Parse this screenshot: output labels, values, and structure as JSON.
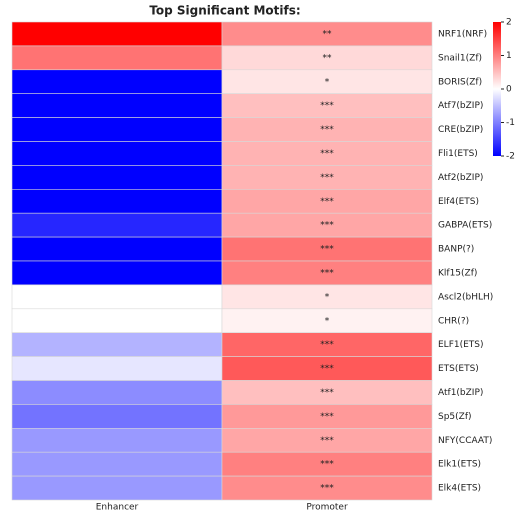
{
  "chart_data": {
    "type": "heatmap",
    "title": "Top Significant Motifs:",
    "rows": [
      "NRF1(NRF)",
      "Snail1(Zf)",
      "BORIS(Zf)",
      "Atf7(bZIP)",
      "CRE(bZIP)",
      "Fli1(ETS)",
      "Atf2(bZIP)",
      "Elf4(ETS)",
      "GABPA(ETS)",
      "BANP(?)",
      "Klf15(Zf)",
      "Ascl2(bHLH)",
      "CHR(?)",
      "ELF1(ETS)",
      "ETS(ETS)",
      "Atf1(bZIP)",
      "Sp5(Zf)",
      "NFY(CCAAT)",
      "Elk1(ETS)",
      "Elk4(ETS)"
    ],
    "series": [
      {
        "name": "Enhancer",
        "values": [
          2,
          1.1,
          -2,
          -2,
          -2,
          -2,
          -2,
          -2,
          -1.7,
          -2,
          -2,
          0,
          0,
          -0.6,
          -0.2,
          -0.9,
          -1.1,
          -0.8,
          -0.8,
          -0.8
        ]
      },
      {
        "name": "Promoter",
        "values": [
          0.9,
          0.3,
          0.2,
          0.5,
          0.6,
          0.6,
          0.6,
          0.7,
          0.7,
          1.1,
          1.0,
          0.2,
          0.1,
          1.2,
          1.3,
          0.5,
          0.8,
          0.7,
          1.0,
          0.9
        ],
        "significance": [
          "**",
          "**",
          "*",
          "***",
          "***",
          "***",
          "***",
          "***",
          "***",
          "***",
          "***",
          "*",
          "*",
          "***",
          "***",
          "***",
          "***",
          "***",
          "***",
          "***"
        ]
      }
    ],
    "colormap": [
      "#0000ff",
      "#ffffff",
      "#ff0000"
    ],
    "clim": [
      -2,
      2
    ],
    "cticks": [
      2,
      1,
      0,
      -1,
      -2
    ]
  }
}
